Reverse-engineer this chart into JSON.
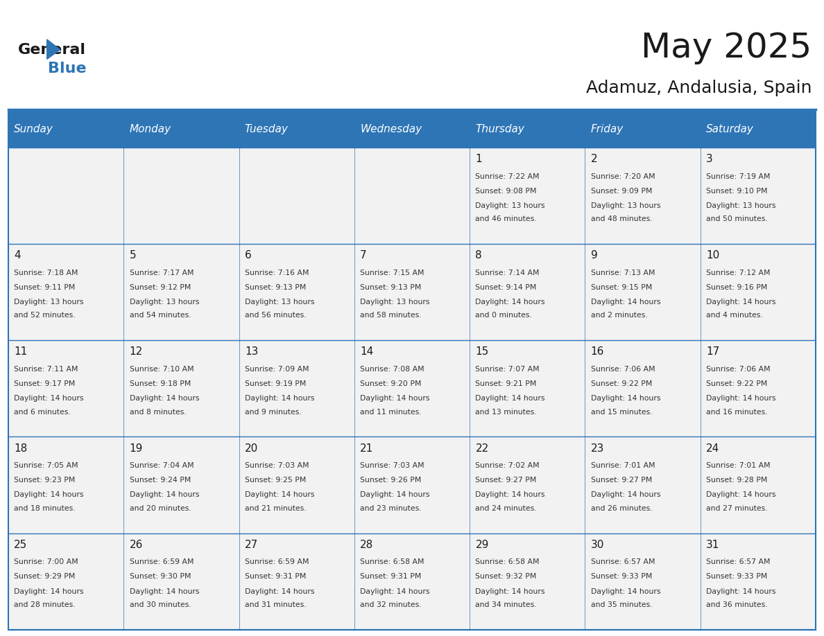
{
  "title": "May 2025",
  "subtitle": "Adamuz, Andalusia, Spain",
  "days_of_week": [
    "Sunday",
    "Monday",
    "Tuesday",
    "Wednesday",
    "Thursday",
    "Friday",
    "Saturday"
  ],
  "header_bg": "#2E75B6",
  "header_text": "#FFFFFF",
  "cell_bg_light": "#F2F2F2",
  "cell_bg_white": "#FFFFFF",
  "cell_text": "#000000",
  "grid_line": "#2E75B6",
  "title_color": "#1A1A1A",
  "subtitle_color": "#1A1A1A",
  "calendar": [
    [
      null,
      null,
      null,
      null,
      {
        "day": 1,
        "sunrise": "7:22 AM",
        "sunset": "9:08 PM",
        "daylight": "13 hours and 46 minutes."
      },
      {
        "day": 2,
        "sunrise": "7:20 AM",
        "sunset": "9:09 PM",
        "daylight": "13 hours and 48 minutes."
      },
      {
        "day": 3,
        "sunrise": "7:19 AM",
        "sunset": "9:10 PM",
        "daylight": "13 hours and 50 minutes."
      }
    ],
    [
      {
        "day": 4,
        "sunrise": "7:18 AM",
        "sunset": "9:11 PM",
        "daylight": "13 hours and 52 minutes."
      },
      {
        "day": 5,
        "sunrise": "7:17 AM",
        "sunset": "9:12 PM",
        "daylight": "13 hours and 54 minutes."
      },
      {
        "day": 6,
        "sunrise": "7:16 AM",
        "sunset": "9:13 PM",
        "daylight": "13 hours and 56 minutes."
      },
      {
        "day": 7,
        "sunrise": "7:15 AM",
        "sunset": "9:13 PM",
        "daylight": "13 hours and 58 minutes."
      },
      {
        "day": 8,
        "sunrise": "7:14 AM",
        "sunset": "9:14 PM",
        "daylight": "14 hours and 0 minutes."
      },
      {
        "day": 9,
        "sunrise": "7:13 AM",
        "sunset": "9:15 PM",
        "daylight": "14 hours and 2 minutes."
      },
      {
        "day": 10,
        "sunrise": "7:12 AM",
        "sunset": "9:16 PM",
        "daylight": "14 hours and 4 minutes."
      }
    ],
    [
      {
        "day": 11,
        "sunrise": "7:11 AM",
        "sunset": "9:17 PM",
        "daylight": "14 hours and 6 minutes."
      },
      {
        "day": 12,
        "sunrise": "7:10 AM",
        "sunset": "9:18 PM",
        "daylight": "14 hours and 8 minutes."
      },
      {
        "day": 13,
        "sunrise": "7:09 AM",
        "sunset": "9:19 PM",
        "daylight": "14 hours and 9 minutes."
      },
      {
        "day": 14,
        "sunrise": "7:08 AM",
        "sunset": "9:20 PM",
        "daylight": "14 hours and 11 minutes."
      },
      {
        "day": 15,
        "sunrise": "7:07 AM",
        "sunset": "9:21 PM",
        "daylight": "14 hours and 13 minutes."
      },
      {
        "day": 16,
        "sunrise": "7:06 AM",
        "sunset": "9:22 PM",
        "daylight": "14 hours and 15 minutes."
      },
      {
        "day": 17,
        "sunrise": "7:06 AM",
        "sunset": "9:22 PM",
        "daylight": "14 hours and 16 minutes."
      }
    ],
    [
      {
        "day": 18,
        "sunrise": "7:05 AM",
        "sunset": "9:23 PM",
        "daylight": "14 hours and 18 minutes."
      },
      {
        "day": 19,
        "sunrise": "7:04 AM",
        "sunset": "9:24 PM",
        "daylight": "14 hours and 20 minutes."
      },
      {
        "day": 20,
        "sunrise": "7:03 AM",
        "sunset": "9:25 PM",
        "daylight": "14 hours and 21 minutes."
      },
      {
        "day": 21,
        "sunrise": "7:03 AM",
        "sunset": "9:26 PM",
        "daylight": "14 hours and 23 minutes."
      },
      {
        "day": 22,
        "sunrise": "7:02 AM",
        "sunset": "9:27 PM",
        "daylight": "14 hours and 24 minutes."
      },
      {
        "day": 23,
        "sunrise": "7:01 AM",
        "sunset": "9:27 PM",
        "daylight": "14 hours and 26 minutes."
      },
      {
        "day": 24,
        "sunrise": "7:01 AM",
        "sunset": "9:28 PM",
        "daylight": "14 hours and 27 minutes."
      }
    ],
    [
      {
        "day": 25,
        "sunrise": "7:00 AM",
        "sunset": "9:29 PM",
        "daylight": "14 hours and 28 minutes."
      },
      {
        "day": 26,
        "sunrise": "6:59 AM",
        "sunset": "9:30 PM",
        "daylight": "14 hours and 30 minutes."
      },
      {
        "day": 27,
        "sunrise": "6:59 AM",
        "sunset": "9:31 PM",
        "daylight": "14 hours and 31 minutes."
      },
      {
        "day": 28,
        "sunrise": "6:58 AM",
        "sunset": "9:31 PM",
        "daylight": "14 hours and 32 minutes."
      },
      {
        "day": 29,
        "sunrise": "6:58 AM",
        "sunset": "9:32 PM",
        "daylight": "14 hours and 34 minutes."
      },
      {
        "day": 30,
        "sunrise": "6:57 AM",
        "sunset": "9:33 PM",
        "daylight": "14 hours and 35 minutes."
      },
      {
        "day": 31,
        "sunrise": "6:57 AM",
        "sunset": "9:33 PM",
        "daylight": "14 hours and 36 minutes."
      }
    ]
  ]
}
